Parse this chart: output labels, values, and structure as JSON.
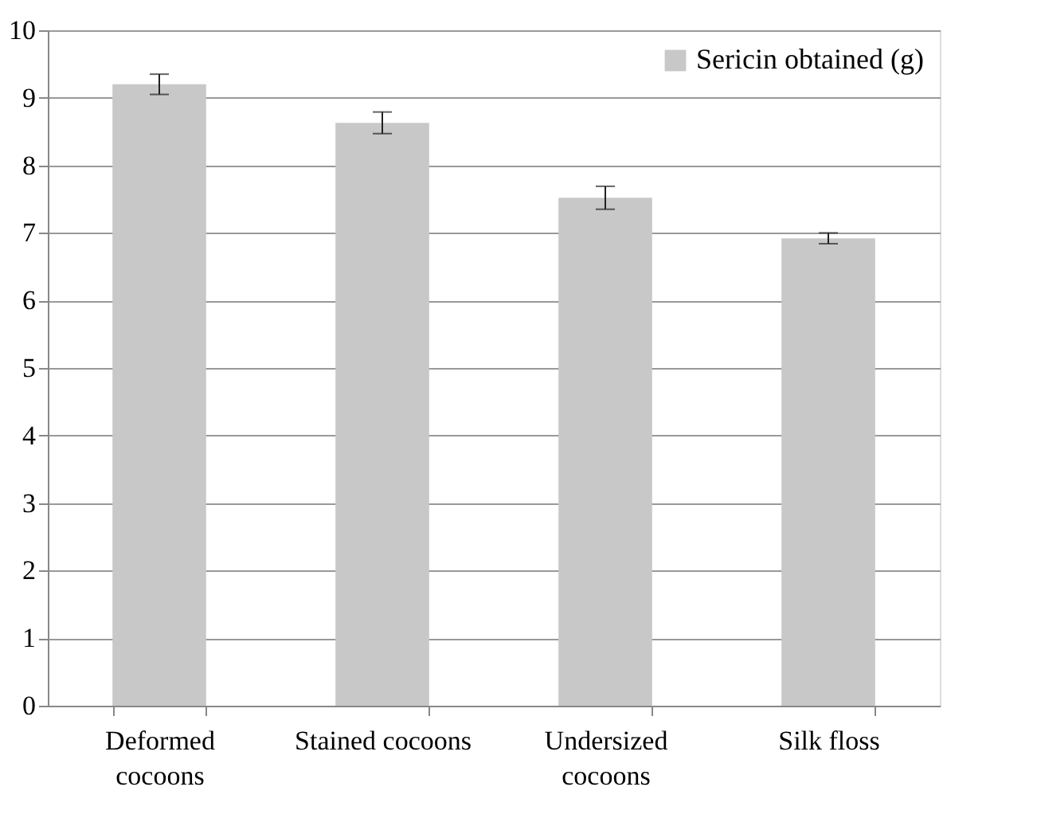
{
  "chart_data": {
    "type": "bar",
    "categories": [
      "Deformed cocoons",
      "Stained cocoons",
      "Undersized cocoons",
      "Silk floss"
    ],
    "series": [
      {
        "name": "Sericin obtained (g)",
        "color": "#c8c8c8",
        "values": [
          9.2,
          8.63,
          7.52,
          6.92
        ],
        "errors": [
          0.15,
          0.16,
          0.17,
          0.08
        ]
      }
    ],
    "ylim": [
      0,
      10
    ],
    "yticks": [
      0,
      1,
      2,
      3,
      4,
      5,
      6,
      7,
      8,
      9,
      10
    ],
    "grid": "y",
    "legend": "top right"
  }
}
